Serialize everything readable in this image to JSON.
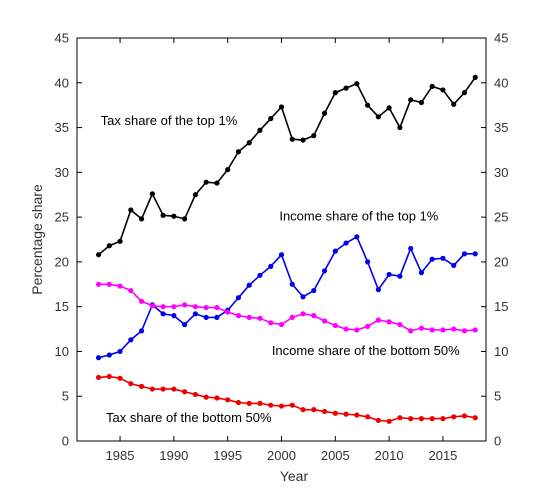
{
  "chart_data": {
    "type": "line",
    "title": "",
    "xlabel": "Year",
    "ylabel": "Percentage share",
    "xlim": [
      1981,
      2019
    ],
    "ylim": [
      0,
      45
    ],
    "xticks": [
      1985,
      1990,
      1995,
      2000,
      2005,
      2010,
      2015
    ],
    "xtick_labels": [
      "1985",
      "1990",
      "1995",
      "2000",
      "2005",
      "2010",
      "2015"
    ],
    "yticks": [
      0,
      5,
      10,
      15,
      20,
      25,
      30,
      35,
      40,
      45
    ],
    "ytick_labels": [
      "0",
      "5",
      "10",
      "15",
      "20",
      "25",
      "30",
      "35",
      "40",
      "45"
    ],
    "grid": false,
    "x": [
      1983,
      1984,
      1985,
      1986,
      1987,
      1988,
      1989,
      1990,
      1991,
      1992,
      1993,
      1994,
      1995,
      1996,
      1997,
      1998,
      1999,
      2000,
      2001,
      2002,
      2003,
      2004,
      2005,
      2006,
      2007,
      2008,
      2009,
      2010,
      2011,
      2012,
      2013,
      2014,
      2015,
      2016,
      2017,
      2018
    ],
    "series": [
      {
        "name": "Tax share of the top 1%",
        "color": "#000000",
        "values": [
          20.8,
          21.8,
          22.3,
          25.8,
          24.8,
          27.6,
          25.2,
          25.1,
          24.8,
          27.5,
          28.9,
          28.8,
          30.3,
          32.3,
          33.3,
          34.7,
          36.0,
          37.3,
          33.7,
          33.6,
          34.1,
          36.6,
          38.9,
          39.4,
          39.9,
          37.5,
          36.2,
          37.2,
          35.0,
          38.1,
          37.8,
          39.6,
          39.2,
          37.6,
          38.9,
          40.6
        ]
      },
      {
        "name": "Income share of the top 1%",
        "color": "#0000ee",
        "values": [
          9.3,
          9.6,
          10.0,
          11.3,
          12.3,
          15.2,
          14.2,
          14.0,
          13.0,
          14.2,
          13.8,
          13.8,
          14.6,
          16.0,
          17.4,
          18.5,
          19.5,
          20.8,
          17.5,
          16.1,
          16.8,
          19.0,
          21.2,
          22.1,
          22.8,
          20.0,
          16.9,
          18.6,
          18.4,
          21.5,
          18.8,
          20.3,
          20.4,
          19.6,
          20.9,
          20.9
        ]
      },
      {
        "name": "Income share of the bottom 50%",
        "color": "#ff00ff",
        "values": [
          17.5,
          17.5,
          17.3,
          16.8,
          15.6,
          15.1,
          15.0,
          15.0,
          15.2,
          15.0,
          14.9,
          14.9,
          14.4,
          14.0,
          13.8,
          13.7,
          13.2,
          13.0,
          13.8,
          14.2,
          14.0,
          13.4,
          12.9,
          12.5,
          12.4,
          12.8,
          13.5,
          13.3,
          13.0,
          12.3,
          12.6,
          12.4,
          12.4,
          12.5,
          12.3,
          12.4
        ]
      },
      {
        "name": "Tax share of the bottom 50%",
        "color": "#ee0000",
        "values": [
          7.1,
          7.2,
          7.0,
          6.4,
          6.1,
          5.8,
          5.8,
          5.8,
          5.5,
          5.2,
          4.9,
          4.8,
          4.6,
          4.3,
          4.2,
          4.2,
          4.0,
          3.9,
          4.0,
          3.5,
          3.5,
          3.3,
          3.1,
          3.0,
          2.9,
          2.7,
          2.3,
          2.2,
          2.6,
          2.5,
          2.5,
          2.5,
          2.5,
          2.7,
          2.8,
          2.6
        ]
      }
    ],
    "annotations": [
      {
        "text": "Tax share of the top 1%",
        "x": 1983.2,
        "y": 35.3,
        "anchor": "start"
      },
      {
        "text": "Income share of the top 1%",
        "x": 1999.8,
        "y": 24.6,
        "anchor": "start"
      },
      {
        "text": "Income share of the bottom 50%",
        "x": 1999.1,
        "y": 9.6,
        "anchor": "start"
      },
      {
        "text": "Tax share of the bottom 50%",
        "x": 1983.7,
        "y": 2.1,
        "anchor": "start"
      }
    ]
  }
}
